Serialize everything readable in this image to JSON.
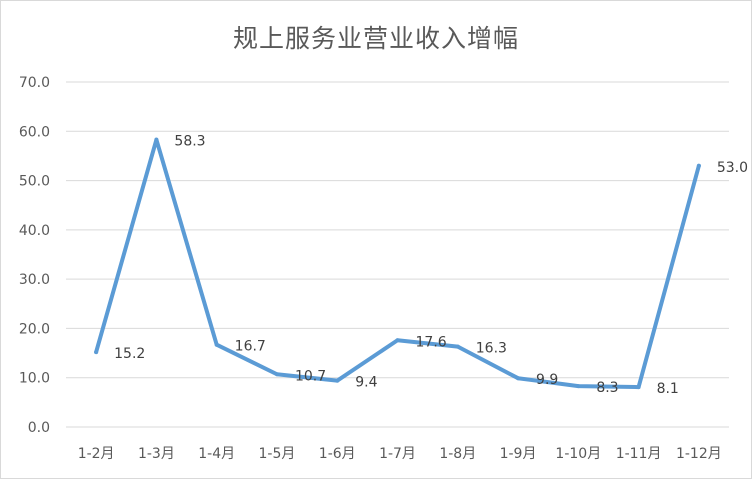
{
  "chart_data": {
    "type": "line",
    "title": "规上服务业营业收入增幅",
    "categories": [
      "1-2月",
      "1-3月",
      "1-4月",
      "1-5月",
      "1-6月",
      "1-7月",
      "1-8月",
      "1-9月",
      "1-10月",
      "1-11月",
      "1-12月"
    ],
    "series": [
      {
        "values": [
          15.2,
          58.3,
          16.7,
          10.7,
          9.4,
          17.6,
          16.3,
          9.9,
          8.3,
          8.1,
          53.0
        ]
      }
    ],
    "value_labels": [
      "15.2",
      "58.3",
      "16.7",
      "10.7",
      "9.4",
      "17.6",
      "16.3",
      "9.9",
      "8.3",
      "8.1",
      "53.0"
    ],
    "ylim": [
      0,
      70
    ],
    "yticks": [
      "0.0",
      "10.0",
      "20.0",
      "30.0",
      "40.0",
      "50.0",
      "60.0",
      "70.0"
    ],
    "grid": true,
    "legend": "none",
    "colors": {
      "line": "#5b9bd5",
      "grid": "#d9d9d9",
      "text": "#595959"
    }
  }
}
